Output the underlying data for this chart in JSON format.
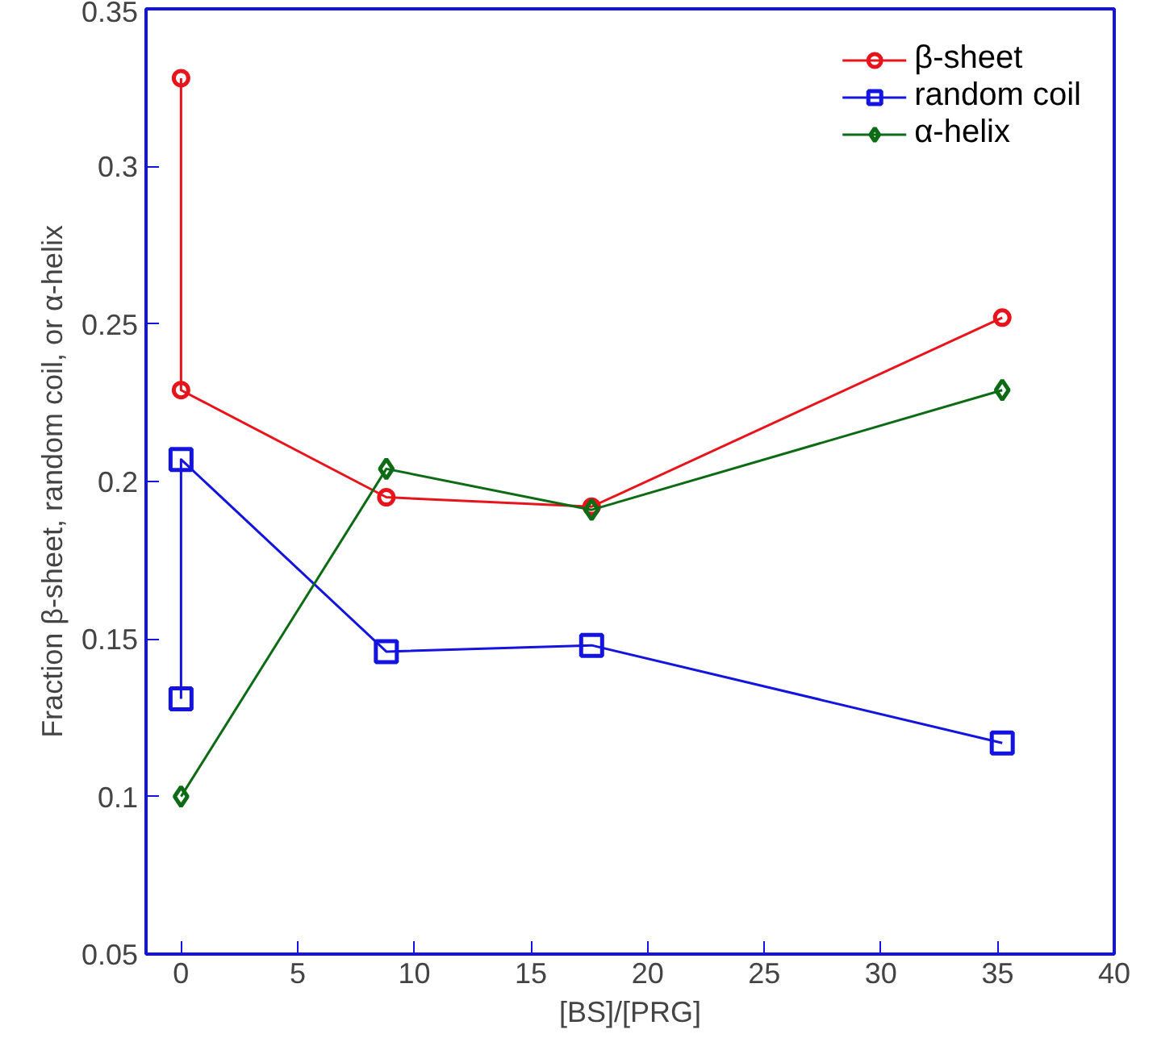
{
  "chart_data": {
    "type": "line",
    "xlabel": "[BS]/[PRG]",
    "ylabel": "Fraction β-sheet, random coil, or α-helix",
    "xlim": [
      -1.5,
      40
    ],
    "ylim": [
      0.05,
      0.35
    ],
    "xticks": [
      0,
      5,
      10,
      15,
      20,
      25,
      30,
      35,
      40
    ],
    "yticks": [
      0.05,
      0.1,
      0.15,
      0.2,
      0.25,
      0.3,
      0.35
    ],
    "grid": false,
    "legend": "top right",
    "series": [
      {
        "name": "β-sheet",
        "color": "#e8141c",
        "marker": "circle",
        "x": [
          0,
          0,
          8.8,
          17.6,
          35.2
        ],
        "values": [
          0.328,
          0.229,
          0.195,
          0.192,
          0.252
        ]
      },
      {
        "name": "random coil",
        "color": "#1414e0",
        "marker": "square",
        "x": [
          0,
          0,
          8.8,
          17.6,
          35.2
        ],
        "values": [
          0.131,
          0.207,
          0.146,
          0.148,
          0.117
        ]
      },
      {
        "name": "α-helix",
        "color": "#0c6b14",
        "marker": "diamond",
        "x": [
          0,
          8.8,
          17.6,
          35.2
        ],
        "values": [
          0.1,
          0.204,
          0.191,
          0.229
        ]
      }
    ]
  }
}
